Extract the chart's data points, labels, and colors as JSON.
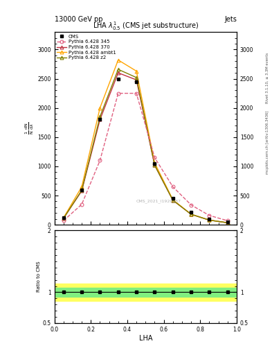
{
  "title": "13000 GeV pp",
  "title_right": "Jets",
  "plot_title": "LHA $\\lambda^{1}_{0.5}$ (CMS jet substructure)",
  "xlabel": "LHA",
  "watermark": "CMS_2021_I1920187",
  "right_label_top": "Rivet 3.1.10, ≥ 3.3M events",
  "right_label_bottom": "mcplots.cern.ch [arXiv:1306.3436]",
  "cms_x": [
    0.05,
    0.15,
    0.25,
    0.35,
    0.45,
    0.55,
    0.65,
    0.75,
    0.85,
    0.95
  ],
  "cms_y": [
    120,
    600,
    1800,
    2500,
    2450,
    1050,
    450,
    220,
    100,
    50
  ],
  "p345_x": [
    0.05,
    0.15,
    0.25,
    0.35,
    0.45,
    0.55,
    0.65,
    0.75,
    0.85,
    0.95
  ],
  "p345_y": [
    70,
    350,
    1100,
    2250,
    2250,
    1150,
    650,
    340,
    160,
    70
  ],
  "p370_x": [
    0.05,
    0.15,
    0.25,
    0.35,
    0.45,
    0.55,
    0.65,
    0.75,
    0.85,
    0.95
  ],
  "p370_y": [
    110,
    580,
    1800,
    2600,
    2480,
    1020,
    420,
    180,
    80,
    35
  ],
  "pambt1_x": [
    0.05,
    0.15,
    0.25,
    0.35,
    0.45,
    0.55,
    0.65,
    0.75,
    0.85,
    0.95
  ],
  "pambt1_y": [
    120,
    650,
    2000,
    2820,
    2630,
    1060,
    430,
    180,
    80,
    35
  ],
  "pz2_x": [
    0.05,
    0.15,
    0.25,
    0.35,
    0.45,
    0.55,
    0.65,
    0.75,
    0.85,
    0.95
  ],
  "pz2_y": [
    110,
    590,
    1850,
    2660,
    2520,
    1020,
    420,
    180,
    80,
    35
  ],
  "ylim": [
    0,
    3300
  ],
  "xlim": [
    0,
    1
  ],
  "ratio_ylim": [
    0.5,
    2.0
  ],
  "cms_color": "#000000",
  "p345_color": "#e06080",
  "p370_color": "#c03040",
  "pambt1_color": "#ffa500",
  "pz2_color": "#808000",
  "band_green": "#80ee80",
  "band_yellow": "#ffff60",
  "legend_labels": [
    "CMS",
    "Pythia 6.428 345",
    "Pythia 6.428 370",
    "Pythia 6.428 ambt1",
    "Pythia 6.428 z2"
  ]
}
